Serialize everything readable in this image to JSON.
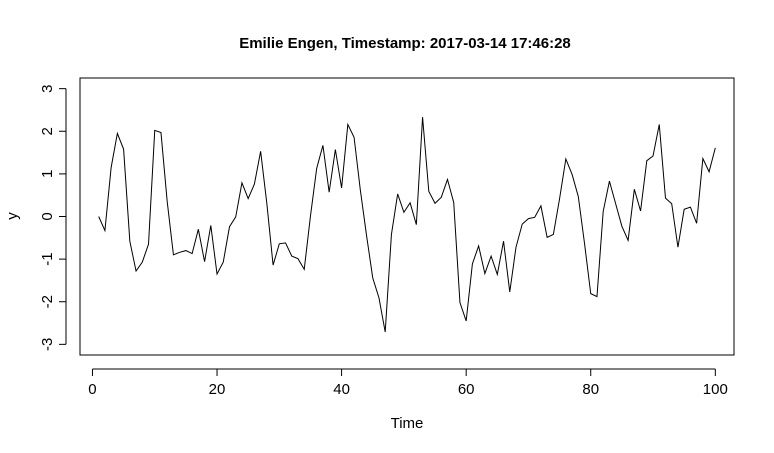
{
  "chart_data": {
    "type": "line",
    "title": "Emilie Engen, Timestamp: 2017-03-14 17:46:28",
    "xlabel": "Time",
    "ylabel": "y",
    "xlim": [
      -2,
      103
    ],
    "ylim": [
      -3.25,
      3.25
    ],
    "x_ticks": [
      0,
      20,
      40,
      60,
      80,
      100
    ],
    "y_ticks": [
      -3,
      -2,
      -1,
      0,
      1,
      2,
      3
    ],
    "x_tick_labels": [
      "0",
      "20",
      "40",
      "60",
      "80",
      "100"
    ],
    "y_tick_labels": [
      "-3",
      "-2",
      "-1",
      "0",
      "1",
      "2",
      "3"
    ],
    "grid": false,
    "legend": "none",
    "line_color": "#000000",
    "series": [
      {
        "x": [
          1,
          2,
          3,
          4,
          5,
          6,
          7,
          8,
          9,
          10,
          11,
          12,
          13,
          14,
          15,
          16,
          17,
          18,
          19,
          20,
          21,
          22,
          23,
          24,
          25,
          26,
          27,
          28,
          29,
          30,
          31,
          32,
          33,
          34,
          35,
          36,
          37,
          38,
          39,
          40,
          41,
          42,
          43,
          44,
          45,
          46,
          47,
          48,
          49,
          50,
          51,
          52,
          53,
          54,
          55,
          56,
          57,
          58,
          59,
          60,
          61,
          62,
          63,
          64,
          65,
          66,
          67,
          68,
          69,
          70,
          71,
          72,
          73,
          74,
          75,
          76,
          77,
          78,
          79,
          80,
          81,
          82,
          83,
          84,
          85,
          86,
          87,
          88,
          89,
          90,
          91,
          92,
          93,
          94,
          95,
          96,
          97,
          98,
          99,
          100
        ],
        "values": [
          0.0,
          -0.33,
          1.15,
          1.95,
          1.58,
          -0.58,
          -1.28,
          -1.07,
          -0.65,
          2.02,
          1.97,
          0.35,
          -0.9,
          -0.84,
          -0.8,
          -0.87,
          -0.3,
          -1.06,
          -0.21,
          -1.35,
          -1.07,
          -0.24,
          -0.01,
          0.79,
          0.42,
          0.76,
          1.53,
          0.3,
          -1.14,
          -0.64,
          -0.62,
          -0.93,
          -0.99,
          -1.24,
          0.01,
          1.13,
          1.67,
          0.57,
          1.57,
          0.67,
          2.16,
          1.86,
          0.63,
          -0.44,
          -1.44,
          -1.91,
          -2.71,
          -0.42,
          0.53,
          0.1,
          0.32,
          -0.19,
          2.33,
          0.59,
          0.31,
          0.45,
          0.87,
          0.33,
          -2.02,
          -2.45,
          -1.11,
          -0.69,
          -1.34,
          -0.93,
          -1.36,
          -0.58,
          -1.77,
          -0.72,
          -0.18,
          -0.05,
          -0.02,
          0.25,
          -0.49,
          -0.42,
          0.42,
          1.35,
          0.99,
          0.47,
          -0.63,
          -1.81,
          -1.88,
          0.12,
          0.83,
          0.3,
          -0.23,
          -0.56,
          0.64,
          0.13,
          1.31,
          1.42,
          2.16,
          0.43,
          0.3,
          -0.72,
          0.17,
          0.22,
          -0.16,
          1.36,
          1.05,
          1.61
        ]
      }
    ]
  }
}
